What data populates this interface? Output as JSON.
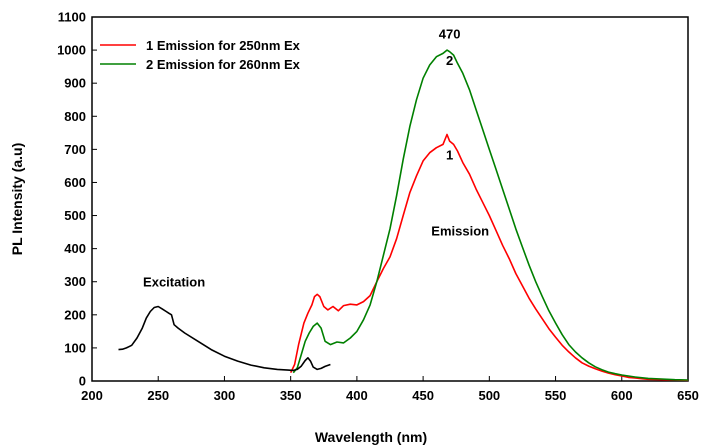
{
  "chart_data": {
    "type": "line",
    "title": "",
    "xlabel": "Wavelength (nm)",
    "ylabel": "PL Intensity (a.u)",
    "xlim": [
      200,
      650
    ],
    "ylim": [
      0,
      1100
    ],
    "x_ticks": [
      200,
      250,
      300,
      350,
      400,
      450,
      500,
      550,
      600,
      650
    ],
    "y_ticks": [
      0,
      100,
      200,
      300,
      400,
      500,
      600,
      700,
      800,
      900,
      1000,
      1100
    ],
    "x_tick_labels": [
      "200",
      "250",
      "300",
      "350",
      "400",
      "450",
      "500",
      "550",
      "600",
      "650"
    ],
    "y_tick_labels": [
      "0",
      "100",
      "200",
      "300",
      "400",
      "500",
      "600",
      "700",
      "800",
      "900",
      "1000",
      "1100"
    ],
    "grid": false,
    "legend": {
      "placement": "top-left",
      "entries": [
        {
          "label": "1 Emission for 250nm Ex",
          "color": "#ff0000"
        },
        {
          "label": "2 Emission for 260nm Ex",
          "color": "#008000"
        }
      ]
    },
    "annotations": [
      {
        "text": "470",
        "x": 470,
        "y": 1035
      },
      {
        "text": "2",
        "x": 470,
        "y": 955
      },
      {
        "text": "1",
        "x": 470,
        "y": 670
      },
      {
        "text": "Emission",
        "x": 478,
        "y": 440
      },
      {
        "text": "Excitation",
        "x": 262,
        "y": 285
      }
    ],
    "series": [
      {
        "name": "1 Emission for 250nm Ex",
        "color": "#ff0000",
        "x": [
          350,
          353,
          356,
          360,
          363,
          366,
          368,
          370,
          372,
          375,
          378,
          382,
          386,
          390,
          395,
          400,
          405,
          410,
          415,
          420,
          425,
          430,
          435,
          440,
          445,
          450,
          455,
          460,
          465,
          468,
          470,
          473,
          476,
          480,
          485,
          490,
          495,
          500,
          505,
          510,
          515,
          520,
          525,
          530,
          535,
          540,
          545,
          550,
          555,
          560,
          565,
          570,
          575,
          580,
          585,
          590,
          595,
          600,
          605,
          610,
          615,
          620,
          630,
          640,
          650
        ],
        "y": [
          25,
          50,
          110,
          175,
          205,
          230,
          255,
          262,
          255,
          225,
          215,
          225,
          212,
          228,
          232,
          230,
          240,
          258,
          300,
          340,
          375,
          430,
          500,
          570,
          620,
          665,
          690,
          705,
          715,
          745,
          725,
          715,
          695,
          660,
          625,
          580,
          540,
          500,
          455,
          410,
          370,
          325,
          288,
          250,
          218,
          188,
          158,
          132,
          108,
          88,
          70,
          55,
          45,
          37,
          30,
          24,
          19,
          15,
          11,
          9,
          7,
          5,
          4,
          3,
          2
        ]
      },
      {
        "name": "2 Emission for 260nm Ex",
        "color": "#008000",
        "x": [
          352,
          355,
          358,
          361,
          364,
          367,
          370,
          373,
          376,
          380,
          385,
          390,
          395,
          400,
          405,
          410,
          415,
          420,
          425,
          430,
          435,
          440,
          445,
          450,
          455,
          460,
          465,
          468,
          470,
          473,
          476,
          480,
          485,
          490,
          495,
          500,
          505,
          510,
          515,
          520,
          525,
          530,
          535,
          540,
          545,
          550,
          555,
          560,
          565,
          570,
          575,
          580,
          585,
          590,
          595,
          600,
          605,
          610,
          620,
          630,
          640,
          650
        ],
        "y": [
          25,
          40,
          80,
          120,
          145,
          165,
          175,
          160,
          120,
          110,
          118,
          115,
          130,
          150,
          185,
          230,
          300,
          380,
          460,
          560,
          670,
          770,
          850,
          915,
          955,
          980,
          990,
          1000,
          995,
          985,
          960,
          930,
          880,
          820,
          760,
          700,
          640,
          580,
          520,
          460,
          405,
          350,
          300,
          255,
          212,
          175,
          140,
          110,
          88,
          70,
          55,
          43,
          34,
          27,
          22,
          18,
          15,
          12,
          8,
          6,
          4,
          3
        ]
      },
      {
        "name": "",
        "color": "#000000",
        "x": [
          220,
          223,
          226,
          230,
          234,
          238,
          241,
          244,
          247,
          250,
          253,
          256,
          258,
          260,
          262,
          265,
          270,
          280,
          290,
          300,
          310,
          320,
          330,
          340,
          348,
          352,
          355,
          358,
          361,
          363,
          365,
          367,
          370,
          373,
          376,
          380
        ],
        "y": [
          95,
          96,
          100,
          108,
          130,
          160,
          190,
          210,
          222,
          225,
          218,
          210,
          205,
          200,
          170,
          160,
          145,
          120,
          95,
          75,
          60,
          48,
          40,
          35,
          33,
          32,
          35,
          45,
          62,
          70,
          60,
          42,
          35,
          38,
          44,
          50
        ]
      }
    ]
  }
}
